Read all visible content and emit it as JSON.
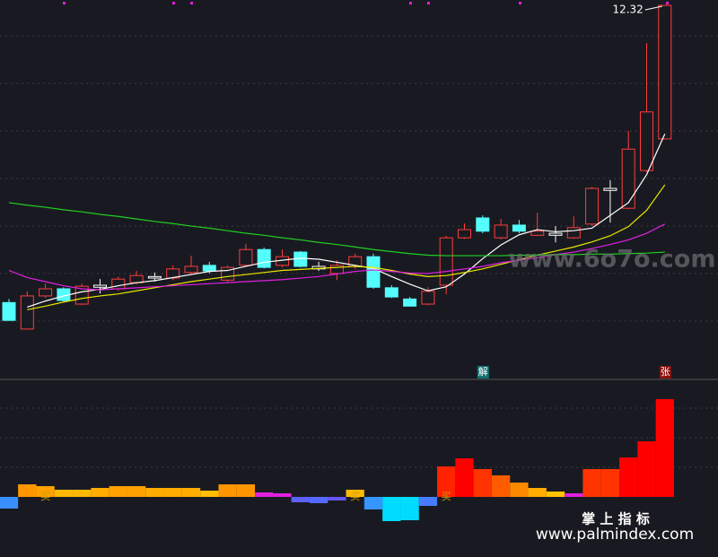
{
  "chart_data": [
    {
      "type": "candlestick",
      "high_label": "12.32",
      "open": [
        6.49,
        5.97,
        6.62,
        6.76,
        6.46,
        6.79,
        6.76,
        6.88,
        6.97,
        6.97,
        7.08,
        7.22,
        6.93,
        7.22,
        7.53,
        7.22,
        7.48,
        7.2,
        7.06,
        7.2,
        7.39,
        6.78,
        6.56,
        6.46,
        6.83,
        7.76,
        8.15,
        7.76,
        8.01,
        7.81,
        7.81,
        7.76,
        8.03,
        8.69,
        8.34,
        9.08,
        9.7
      ],
      "high": [
        6.56,
        6.71,
        6.86,
        6.79,
        6.86,
        6.95,
        7.0,
        7.11,
        7.08,
        7.22,
        7.41,
        7.29,
        7.22,
        7.64,
        7.57,
        7.53,
        7.5,
        7.29,
        7.32,
        7.45,
        7.45,
        6.83,
        6.6,
        6.79,
        7.8,
        8.04,
        8.2,
        8.13,
        8.11,
        8.25,
        7.99,
        8.18,
        8.76,
        8.89,
        9.86,
        11.58,
        12.32
      ],
      "low": [
        6.13,
        5.97,
        6.58,
        6.51,
        6.44,
        6.67,
        6.72,
        6.85,
        6.9,
        6.93,
        7.04,
        7.06,
        6.9,
        7.2,
        7.16,
        7.18,
        7.18,
        7.11,
        6.93,
        7.15,
        6.76,
        6.58,
        6.41,
        6.44,
        6.65,
        7.74,
        7.85,
        7.73,
        7.85,
        7.8,
        7.67,
        7.74,
        7.99,
        8.06,
        8.32,
        9.05,
        9.7
      ],
      "close": [
        6.14,
        6.62,
        6.76,
        6.53,
        6.81,
        6.83,
        6.95,
        7.02,
        7.0,
        7.15,
        7.2,
        7.11,
        7.18,
        7.53,
        7.18,
        7.39,
        7.2,
        7.15,
        7.22,
        7.39,
        6.79,
        6.6,
        6.42,
        6.71,
        7.76,
        7.92,
        7.89,
        8.01,
        7.89,
        7.89,
        7.85,
        7.96,
        8.73,
        8.73,
        9.5,
        10.23,
        12.32
      ],
      "up_color": "#ff3c3c",
      "down_color": "#54fcfc",
      "doji_color": "#ffffff",
      "ylim": [
        5.0,
        12.32
      ],
      "series": [
        {
          "color": "#ffffff",
          "values": [
            null,
            6.4,
            6.52,
            6.62,
            6.7,
            6.75,
            6.82,
            6.88,
            6.92,
            6.98,
            7.04,
            7.1,
            7.12,
            7.2,
            7.28,
            7.32,
            7.36,
            7.34,
            7.28,
            7.22,
            7.16,
            7.0,
            6.85,
            6.72,
            6.8,
            7.05,
            7.35,
            7.62,
            7.82,
            7.92,
            7.88,
            7.9,
            7.95,
            8.2,
            8.45,
            9.0,
            9.8
          ]
        },
        {
          "color": "#e8e800",
          "values": [
            null,
            6.35,
            6.42,
            6.5,
            6.57,
            6.62,
            6.66,
            6.72,
            6.78,
            6.84,
            6.9,
            6.95,
            7.0,
            7.04,
            7.08,
            7.12,
            7.14,
            7.16,
            7.18,
            7.2,
            7.18,
            7.12,
            7.05,
            7.0,
            7.02,
            7.08,
            7.15,
            7.24,
            7.33,
            7.42,
            7.5,
            7.58,
            7.68,
            7.8,
            7.98,
            8.3,
            8.8
          ]
        },
        {
          "color": "#e020e0",
          "values": [
            7.12,
            6.98,
            6.9,
            6.82,
            6.76,
            6.74,
            6.76,
            6.78,
            6.8,
            6.82,
            6.84,
            6.86,
            6.88,
            6.9,
            6.92,
            6.94,
            6.97,
            7.0,
            7.05,
            7.1,
            7.13,
            7.1,
            7.07,
            7.06,
            7.1,
            7.15,
            7.2,
            7.27,
            7.32,
            7.37,
            7.43,
            7.48,
            7.55,
            7.63,
            7.72,
            7.85,
            8.03
          ]
        },
        {
          "color": "#20d020",
          "values": [
            8.45,
            8.4,
            8.36,
            8.31,
            8.27,
            8.22,
            8.18,
            8.13,
            8.08,
            8.04,
            7.99,
            7.95,
            7.9,
            7.85,
            7.81,
            7.76,
            7.72,
            7.67,
            7.63,
            7.58,
            7.53,
            7.49,
            7.45,
            7.42,
            7.41,
            7.41,
            7.41,
            7.41,
            7.42,
            7.42,
            7.43,
            7.43,
            7.44,
            7.44,
            7.45,
            7.46,
            7.48
          ]
        }
      ],
      "annotations": [
        "解",
        "张"
      ]
    },
    {
      "type": "bar",
      "values": [
        -13,
        14,
        12,
        8,
        8,
        10,
        12,
        12,
        10,
        10,
        10,
        7,
        14,
        14,
        5,
        4,
        -6,
        -7,
        -4,
        8,
        -14,
        -27,
        -26,
        -10,
        34,
        43,
        31,
        24,
        16,
        10,
        6,
        4,
        31,
        31,
        44,
        62,
        109
      ],
      "ylim": [
        -67,
        130
      ],
      "annotations": [
        "买",
        "买",
        "买"
      ]
    }
  ],
  "watermark": "www.6o7o.com",
  "brand": "掌 上 指 标",
  "site": "www.palmindex.com"
}
